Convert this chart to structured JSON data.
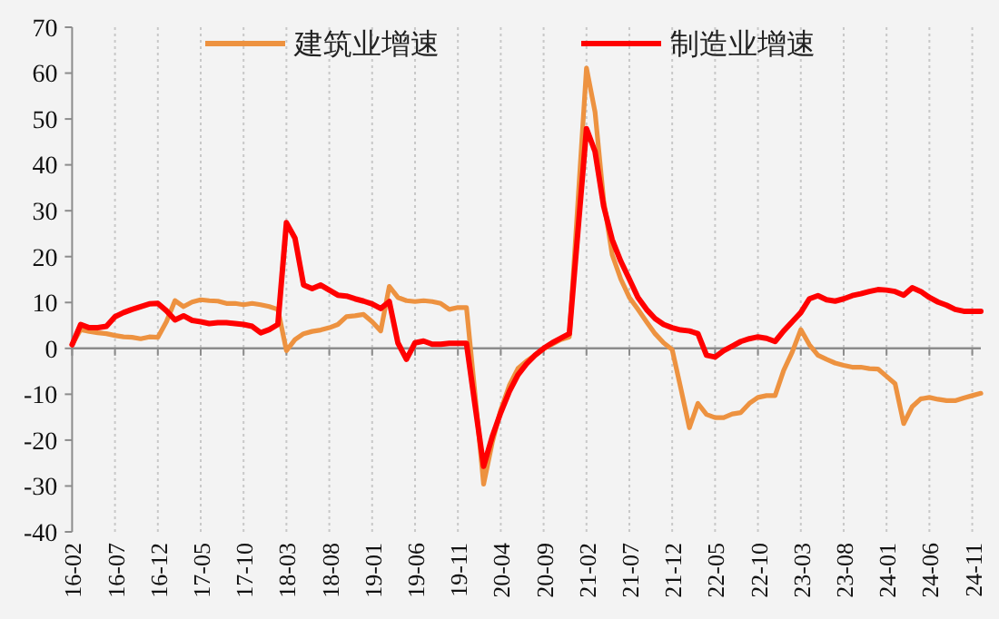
{
  "chart_data": {
    "type": "line",
    "categories": [
      "16-02",
      null,
      null,
      null,
      null,
      "16-07",
      null,
      null,
      null,
      null,
      "16-12",
      null,
      null,
      null,
      null,
      "17-05",
      null,
      null,
      null,
      null,
      "17-10",
      null,
      null,
      null,
      null,
      "18-03",
      null,
      null,
      null,
      null,
      "18-08",
      null,
      null,
      null,
      null,
      "19-01",
      null,
      null,
      null,
      null,
      "19-06",
      null,
      null,
      null,
      null,
      "19-11",
      null,
      null,
      null,
      null,
      "20-04",
      null,
      null,
      null,
      null,
      "20-09",
      null,
      null,
      null,
      null,
      "21-02",
      null,
      null,
      null,
      null,
      "21-07",
      null,
      null,
      null,
      null,
      "21-12",
      null,
      null,
      null,
      null,
      "22-05",
      null,
      null,
      null,
      null,
      "22-10",
      null,
      null,
      null,
      null,
      "23-03",
      null,
      null,
      null,
      null,
      "23-08",
      null,
      null,
      null,
      null,
      "24-01",
      null,
      null,
      null,
      null,
      "24-06",
      null,
      null,
      null,
      null,
      "24-11",
      null
    ],
    "series": [
      {
        "name": "建筑业增速",
        "color": "#ed9240",
        "values": [
          0.8,
          4.1,
          3.7,
          3.4,
          3.2,
          2.8,
          2.5,
          2.4,
          2.1,
          2.5,
          2.4,
          5.8,
          10.4,
          9.1,
          10.1,
          10.6,
          10.4,
          10.3,
          9.8,
          9.8,
          9.5,
          9.8,
          9.5,
          9.1,
          8.5,
          -0.5,
          1.9,
          3.2,
          3.7,
          4.0,
          4.5,
          5.2,
          6.9,
          7.1,
          7.4,
          5.8,
          3.8,
          13.5,
          11.1,
          10.4,
          10.2,
          10.4,
          10.2,
          9.8,
          8.5,
          8.9,
          8.9,
          -10,
          -29.6,
          -20.6,
          -13.4,
          -8.1,
          -4.4,
          -2.8,
          -1.5,
          -0.1,
          0.9,
          1.9,
          2.5,
          31.8,
          61.1,
          51.5,
          32.3,
          20.4,
          15.1,
          11.1,
          8.5,
          5.8,
          3.2,
          1.2,
          -0.3,
          -8.7,
          -17.3,
          -12,
          -14.4,
          -15.1,
          -15.1,
          -14.3,
          -14,
          -12,
          -10.7,
          -10.3,
          -10.3,
          -4.8,
          -0.8,
          4.1,
          0.8,
          -1.5,
          -2.4,
          -3.2,
          -3.7,
          -4.1,
          -4.1,
          -4.4,
          -4.5,
          -6.1,
          -7.7,
          -16.4,
          -12.7,
          -11,
          -10.7,
          -11.1,
          -11.4,
          -11.4,
          -10.8,
          -10.3,
          -9.8
        ]
      },
      {
        "name": "制造业增速",
        "color": "#ff0000",
        "values": [
          0.8,
          5.2,
          4.5,
          4.5,
          4.8,
          6.9,
          7.8,
          8.5,
          9.1,
          9.7,
          9.8,
          8.2,
          6.2,
          7.1,
          6.1,
          5.8,
          5.4,
          5.6,
          5.6,
          5.4,
          5.2,
          4.8,
          3.4,
          4.1,
          5.2,
          27.4,
          24,
          13.8,
          13,
          13.8,
          12.7,
          11.6,
          11.4,
          10.8,
          10.3,
          9.7,
          8.7,
          10.2,
          1.2,
          -2.4,
          1.2,
          1.6,
          0.9,
          0.9,
          1.1,
          1.1,
          1.1,
          -12.4,
          -25.7,
          -19.3,
          -14,
          -9.4,
          -5.8,
          -3.4,
          -1.5,
          0,
          1.2,
          2.2,
          3.2,
          25.5,
          47.9,
          42.9,
          31,
          23.7,
          19,
          15.1,
          11.1,
          8.5,
          6.5,
          5.2,
          4.5,
          4.0,
          3.8,
          3.2,
          -1.5,
          -1.9,
          -0.5,
          0.5,
          1.5,
          2.1,
          2.5,
          2.2,
          1.5,
          3.8,
          5.8,
          7.8,
          10.8,
          11.5,
          10.6,
          10.3,
          10.8,
          11.5,
          11.9,
          12.4,
          12.8,
          12.7,
          12.4,
          11.6,
          13.2,
          12.4,
          11.1,
          10.1,
          9.4,
          8.5,
          8.1,
          8.1,
          8.1
        ]
      }
    ],
    "ylim": [
      -40,
      70
    ],
    "yticks": [
      -40,
      -30,
      -20,
      -10,
      0,
      10,
      20,
      30,
      40,
      50,
      60,
      70
    ],
    "grid": "x",
    "legend": "top",
    "line_style": "solid",
    "marker": "none"
  }
}
